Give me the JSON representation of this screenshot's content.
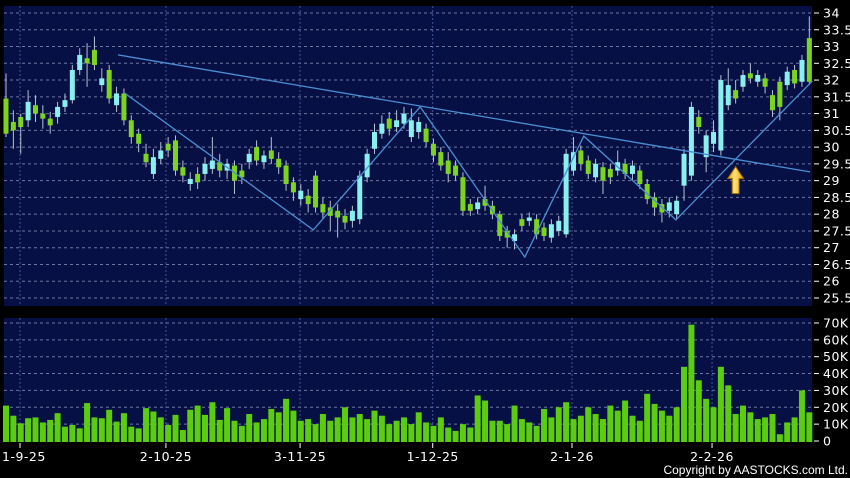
{
  "meta": {
    "copyright": "Copyright by AASTOCKS.com Ltd."
  },
  "colors": {
    "background": "#000000",
    "panel": "#071044",
    "grid_horizontal": "#9098c0",
    "grid_vertical": "#4d5ca2",
    "candle_green": "#7dd41f",
    "candle_cyan": "#8aefef",
    "wick": "#b8c0d0",
    "volume_bar": "#5ccc10",
    "trendline": "#4a8fd4",
    "arrow_light": "#ffe27a",
    "arrow_dark": "#e89a00",
    "arrow_outline": "#9a6500",
    "axis_text": "#ffffff"
  },
  "chart_data": {
    "type": "candlestick+volume",
    "price_axis": {
      "labels": [
        "34",
        "33.5",
        "33",
        "32.5",
        "32",
        "31.5",
        "31",
        "30.5",
        "30",
        "29.5",
        "29",
        "28.5",
        "28",
        "27.5",
        "27",
        "26.5",
        "26",
        "25.5"
      ],
      "min": 25.5,
      "max": 34,
      "step": 0.5
    },
    "volume_axis": {
      "labels": [
        "70K",
        "60K",
        "50K",
        "40K",
        "30K",
        "20K",
        "10K",
        "0"
      ],
      "max_k": 70,
      "step_k": 10
    },
    "x_axis": {
      "labels": [
        {
          "text": "1-9-25",
          "index": 1.9,
          "anchor": "start"
        },
        {
          "text": "2-10-25",
          "index": 21.7,
          "anchor": "middle"
        },
        {
          "text": "3-11-25",
          "index": 39.9,
          "anchor": "middle"
        },
        {
          "text": "1-12-25",
          "index": 57.9,
          "anchor": "middle"
        },
        {
          "text": "2-1-26",
          "index": 76.8,
          "anchor": "middle"
        },
        {
          "text": "2-2-26",
          "index": 95.8,
          "anchor": "middle"
        }
      ]
    },
    "candles": [
      [
        31.45,
        30.4,
        32.2,
        30.3,
        "g"
      ],
      [
        30.75,
        30.5,
        31.1,
        29.95,
        "g"
      ],
      [
        30.9,
        30.6,
        31.0,
        29.8,
        "g"
      ],
      [
        31.35,
        30.8,
        31.7,
        30.6,
        "c"
      ],
      [
        31.25,
        31.0,
        31.55,
        30.75,
        "g"
      ],
      [
        31.0,
        30.85,
        31.25,
        30.55,
        "g"
      ],
      [
        30.85,
        30.65,
        31.05,
        30.4,
        "g"
      ],
      [
        31.2,
        30.9,
        31.35,
        30.7,
        "c"
      ],
      [
        31.4,
        31.2,
        31.6,
        31.05,
        "c"
      ],
      [
        32.3,
        31.4,
        32.45,
        31.3,
        "c"
      ],
      [
        32.75,
        32.3,
        32.95,
        32.15,
        "c"
      ],
      [
        32.65,
        32.5,
        33.1,
        31.8,
        "g"
      ],
      [
        32.9,
        32.45,
        33.3,
        32.3,
        "g"
      ],
      [
        32.05,
        31.85,
        32.35,
        31.65,
        "c"
      ],
      [
        32.3,
        31.45,
        32.45,
        31.3,
        "g"
      ],
      [
        31.6,
        31.25,
        31.8,
        31.05,
        "c"
      ],
      [
        31.6,
        30.8,
        31.75,
        30.65,
        "g"
      ],
      [
        30.8,
        30.3,
        30.95,
        30.1,
        "g"
      ],
      [
        30.4,
        30.1,
        30.55,
        29.85,
        "g"
      ],
      [
        29.8,
        29.55,
        30.1,
        29.4,
        "g"
      ],
      [
        29.7,
        29.2,
        29.95,
        29.05,
        "c"
      ],
      [
        29.9,
        29.65,
        30.15,
        29.5,
        "c"
      ],
      [
        30.1,
        29.9,
        30.3,
        29.7,
        "g"
      ],
      [
        30.2,
        29.3,
        30.35,
        29.15,
        "g"
      ],
      [
        29.4,
        29.15,
        29.6,
        28.95,
        "g"
      ],
      [
        29.05,
        28.9,
        29.25,
        28.7,
        "c"
      ],
      [
        29.2,
        28.95,
        29.4,
        28.75,
        "g"
      ],
      [
        29.5,
        29.2,
        29.7,
        29.0,
        "c"
      ],
      [
        29.6,
        29.35,
        30.3,
        29.2,
        "c"
      ],
      [
        29.55,
        29.3,
        29.8,
        29.1,
        "g"
      ],
      [
        29.5,
        29.3,
        29.65,
        29.05,
        "c"
      ],
      [
        29.45,
        29.0,
        29.6,
        28.6,
        "g"
      ],
      [
        29.3,
        29.1,
        29.5,
        28.9,
        "g"
      ],
      [
        29.8,
        29.55,
        29.95,
        29.35,
        "c"
      ],
      [
        30.0,
        29.6,
        30.2,
        29.45,
        "g"
      ],
      [
        29.75,
        29.55,
        29.9,
        29.35,
        "c"
      ],
      [
        29.9,
        29.65,
        30.3,
        29.5,
        "g"
      ],
      [
        29.65,
        29.4,
        29.85,
        29.2,
        "g"
      ],
      [
        29.45,
        28.9,
        29.6,
        28.7,
        "g"
      ],
      [
        28.95,
        28.65,
        29.1,
        28.4,
        "g"
      ],
      [
        28.7,
        28.45,
        28.9,
        28.25,
        "c"
      ],
      [
        28.55,
        28.3,
        28.75,
        28.05,
        "g"
      ],
      [
        29.15,
        28.2,
        29.3,
        28.05,
        "g"
      ],
      [
        28.3,
        28.05,
        28.5,
        27.85,
        "g"
      ],
      [
        28.2,
        27.95,
        28.4,
        27.5,
        "g"
      ],
      [
        28.1,
        27.9,
        28.3,
        27.3,
        "g"
      ],
      [
        27.95,
        27.75,
        28.15,
        27.55,
        "g"
      ],
      [
        28.1,
        27.8,
        28.25,
        27.6,
        "c"
      ],
      [
        29.15,
        27.85,
        29.3,
        27.7,
        "c"
      ],
      [
        29.8,
        29.1,
        29.95,
        28.95,
        "c"
      ],
      [
        30.45,
        29.95,
        30.7,
        29.8,
        "c"
      ],
      [
        30.7,
        30.4,
        30.95,
        30.25,
        "c"
      ],
      [
        30.85,
        30.55,
        31.05,
        30.35,
        "g"
      ],
      [
        30.8,
        30.6,
        31.1,
        30.45,
        "c"
      ],
      [
        31.0,
        30.7,
        31.2,
        30.55,
        "c"
      ],
      [
        30.8,
        30.3,
        31.15,
        30.15,
        "c"
      ],
      [
        30.75,
        30.45,
        30.9,
        30.25,
        "c"
      ],
      [
        30.55,
        30.15,
        30.7,
        30.0,
        "g"
      ],
      [
        30.1,
        29.75,
        30.25,
        29.55,
        "g"
      ],
      [
        29.85,
        29.45,
        30.0,
        29.3,
        "g"
      ],
      [
        29.6,
        29.2,
        29.85,
        28.95,
        "g"
      ],
      [
        29.45,
        29.15,
        29.6,
        29.0,
        "g"
      ],
      [
        29.1,
        28.1,
        29.25,
        27.95,
        "g"
      ],
      [
        28.3,
        28.1,
        28.45,
        27.95,
        "g"
      ],
      [
        28.35,
        28.15,
        28.5,
        28.0,
        "c"
      ],
      [
        28.45,
        28.25,
        28.85,
        28.1,
        "g"
      ],
      [
        28.25,
        28.0,
        28.4,
        27.85,
        "g"
      ],
      [
        28.0,
        27.35,
        28.1,
        27.2,
        "g"
      ],
      [
        27.5,
        27.3,
        27.65,
        27.0,
        "g"
      ],
      [
        27.4,
        27.2,
        27.55,
        26.95,
        "c"
      ],
      [
        27.85,
        27.65,
        28.0,
        27.5,
        "g"
      ],
      [
        27.9,
        27.8,
        28.05,
        27.65,
        "c"
      ],
      [
        27.85,
        27.4,
        28.0,
        27.25,
        "g"
      ],
      [
        27.6,
        27.35,
        27.75,
        27.2,
        "g"
      ],
      [
        27.7,
        27.3,
        27.85,
        27.15,
        "c"
      ],
      [
        27.8,
        27.5,
        27.95,
        27.35,
        "c"
      ],
      [
        29.8,
        27.4,
        29.95,
        27.3,
        "c"
      ],
      [
        29.85,
        29.3,
        30.3,
        29.15,
        "c"
      ],
      [
        29.9,
        29.5,
        30.05,
        29.3,
        "g"
      ],
      [
        29.6,
        29.2,
        29.75,
        29.05,
        "g"
      ],
      [
        29.5,
        29.1,
        29.65,
        28.95,
        "c"
      ],
      [
        29.4,
        29.0,
        29.55,
        28.6,
        "g"
      ],
      [
        29.35,
        29.1,
        29.5,
        28.9,
        "g"
      ],
      [
        29.55,
        29.3,
        29.9,
        29.15,
        "c"
      ],
      [
        29.5,
        29.2,
        29.65,
        29.05,
        "g"
      ],
      [
        29.45,
        29.2,
        29.6,
        29.0,
        "c"
      ],
      [
        29.3,
        28.9,
        29.45,
        28.75,
        "g"
      ],
      [
        28.9,
        28.45,
        29.05,
        28.3,
        "g"
      ],
      [
        28.5,
        28.2,
        28.65,
        27.95,
        "g"
      ],
      [
        28.3,
        28.05,
        28.45,
        27.75,
        "g"
      ],
      [
        28.35,
        28.1,
        28.5,
        27.9,
        "c"
      ],
      [
        28.4,
        28.0,
        28.55,
        27.85,
        "c"
      ],
      [
        29.8,
        28.85,
        29.95,
        28.4,
        "c"
      ],
      [
        31.2,
        29.15,
        31.35,
        29.0,
        "c"
      ],
      [
        30.9,
        30.6,
        31.1,
        30.4,
        "g"
      ],
      [
        30.35,
        29.7,
        30.5,
        29.25,
        "c"
      ],
      [
        30.45,
        30.1,
        30.8,
        29.85,
        "c"
      ],
      [
        32.0,
        29.9,
        32.15,
        29.75,
        "c"
      ],
      [
        31.85,
        31.25,
        32.35,
        31.1,
        "c"
      ],
      [
        31.7,
        31.45,
        32.0,
        31.3,
        "g"
      ],
      [
        32.15,
        31.8,
        32.3,
        31.65,
        "c"
      ],
      [
        32.2,
        32.05,
        32.5,
        31.9,
        "g"
      ],
      [
        32.15,
        31.95,
        32.3,
        31.8,
        "c"
      ],
      [
        32.05,
        31.8,
        32.2,
        31.6,
        "g"
      ],
      [
        31.55,
        31.1,
        31.7,
        30.9,
        "g"
      ],
      [
        31.95,
        31.2,
        32.1,
        30.8,
        "g"
      ],
      [
        32.25,
        31.85,
        32.4,
        31.7,
        "c"
      ],
      [
        32.3,
        31.9,
        32.45,
        31.75,
        "g"
      ],
      [
        32.6,
        31.95,
        32.75,
        31.8,
        "c"
      ],
      [
        33.25,
        31.95,
        33.9,
        31.85,
        "g"
      ]
    ],
    "volumes_k": [
      21,
      15,
      10.5,
      13.5,
      14,
      11,
      12.5,
      16.5,
      8.5,
      9.5,
      7.5,
      22.5,
      14,
      13.5,
      18.5,
      11.5,
      16.5,
      8.5,
      7.5,
      19.5,
      17.5,
      14,
      9.5,
      15.5,
      6.5,
      18.5,
      21,
      15.5,
      23,
      12.5,
      19.5,
      12,
      9,
      16,
      11,
      13,
      19,
      17,
      25,
      18,
      12,
      13,
      10,
      16,
      12,
      14,
      20,
      14,
      16,
      13,
      18,
      15,
      10,
      12,
      14,
      10,
      17,
      11,
      9,
      14,
      8,
      6,
      10,
      8,
      27,
      24,
      12,
      12,
      10,
      21,
      13,
      11,
      9,
      19,
      14,
      20,
      23,
      13,
      15,
      20,
      16,
      13,
      21,
      18,
      24,
      15,
      12,
      28,
      22,
      18,
      15,
      20,
      44,
      69,
      36,
      25,
      20,
      44,
      33,
      16,
      21,
      17,
      13,
      14,
      16,
      4,
      11,
      14,
      30,
      17
    ],
    "trendlines": {
      "resistance": [
        [
          15.2,
          32.75
        ],
        [
          109.1,
          29.26
        ]
      ],
      "zigzag": [
        [
          16.1,
          31.61
        ],
        [
          41.7,
          27.53
        ],
        [
          56.2,
          31.2
        ],
        [
          70.4,
          26.72
        ],
        [
          78.4,
          30.33
        ],
        [
          90.9,
          27.83
        ],
        [
          109.4,
          31.97
        ]
      ]
    },
    "annotations": {
      "up_arrow": {
        "index": 99,
        "price": 29.42
      }
    }
  }
}
